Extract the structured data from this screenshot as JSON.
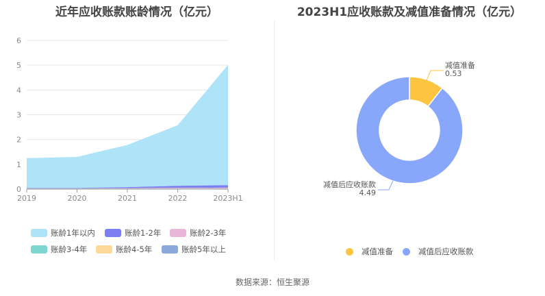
{
  "left_title": "近年应收账款账龄情况（亿元）",
  "right_title": "2023H1应收账款及减值准备情况（亿元）",
  "source": "数据来源：恒生聚源",
  "chart_data": [
    {
      "type": "area",
      "title": "近年应收账款账龄情况（亿元）",
      "categories": [
        "2019",
        "2020",
        "2021",
        "2022",
        "2023H1"
      ],
      "ylim": [
        0,
        6
      ],
      "yticks": [
        "0",
        "1",
        "2",
        "3",
        "4",
        "5",
        "6"
      ],
      "grid": true,
      "legend_position": "bottom",
      "series": [
        {
          "name": "账龄1年以内",
          "color": "#aee3f8",
          "values": [
            1.2,
            1.25,
            1.7,
            2.45,
            4.85
          ]
        },
        {
          "name": "账龄1-2年",
          "color": "#7b7ff0",
          "values": [
            0.02,
            0.02,
            0.04,
            0.08,
            0.1
          ]
        },
        {
          "name": "账龄2-3年",
          "color": "#e8b7d8",
          "values": [
            0.01,
            0.01,
            0.02,
            0.03,
            0.04
          ]
        },
        {
          "name": "账龄3-4年",
          "color": "#7fd5d2",
          "values": [
            0.01,
            0.01,
            0.01,
            0.01,
            0.01
          ]
        },
        {
          "name": "账龄4-5年",
          "color": "#fcd89a",
          "values": [
            0.0,
            0.0,
            0.0,
            0.0,
            0.0
          ]
        },
        {
          "name": "账龄5年以上",
          "color": "#8aa8d8",
          "values": [
            0.01,
            0.01,
            0.01,
            0.01,
            0.01
          ]
        }
      ]
    },
    {
      "type": "pie",
      "title": "2023H1应收账款及减值准备情况（亿元）",
      "legend_position": "bottom",
      "slices": [
        {
          "name": "减值准备",
          "value": 0.53,
          "label": "0.53",
          "color": "#fcc43f"
        },
        {
          "name": "减值后应收账款",
          "value": 4.49,
          "label": "4.49",
          "color": "#88a6fa"
        }
      ]
    }
  ]
}
